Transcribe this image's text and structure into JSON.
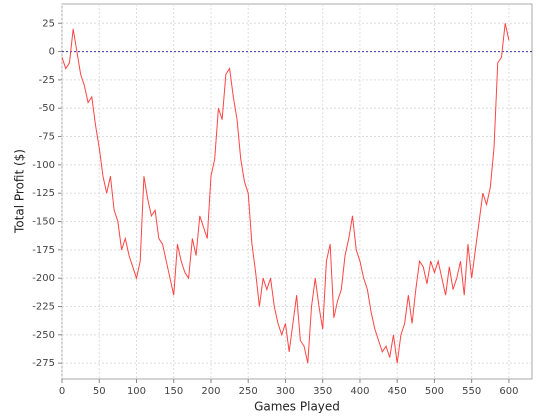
{
  "chart_data": {
    "type": "line",
    "x_label": "Games Played",
    "y_label": "Total Profit ($)",
    "x": [
      0,
      5,
      10,
      15,
      20,
      25,
      30,
      35,
      40,
      45,
      50,
      55,
      60,
      65,
      70,
      75,
      80,
      85,
      90,
      95,
      100,
      105,
      110,
      115,
      120,
      125,
      130,
      135,
      140,
      145,
      150,
      155,
      160,
      165,
      170,
      175,
      180,
      185,
      190,
      195,
      200,
      205,
      210,
      215,
      220,
      225,
      230,
      235,
      240,
      245,
      250,
      255,
      260,
      265,
      270,
      275,
      280,
      285,
      290,
      295,
      300,
      305,
      310,
      315,
      320,
      325,
      330,
      335,
      340,
      345,
      350,
      355,
      360,
      365,
      370,
      375,
      380,
      385,
      390,
      395,
      400,
      405,
      410,
      415,
      420,
      425,
      430,
      435,
      440,
      445,
      450,
      455,
      460,
      465,
      470,
      475,
      480,
      485,
      490,
      495,
      500,
      505,
      510,
      515,
      520,
      525,
      530,
      535,
      540,
      545,
      550,
      555,
      560,
      565,
      570,
      575,
      580,
      585,
      590,
      595,
      600
    ],
    "series": [
      {
        "color": "#ff4444",
        "values": [
          -5,
          -15,
          -10,
          20,
          0,
          -20,
          -30,
          -45,
          -40,
          -65,
          -85,
          -110,
          -125,
          -110,
          -140,
          -150,
          -175,
          -165,
          -180,
          -190,
          -200,
          -185,
          -110,
          -130,
          -145,
          -140,
          -165,
          -170,
          -185,
          -200,
          -215,
          -170,
          -185,
          -195,
          -200,
          -165,
          -180,
          -145,
          -155,
          -165,
          -110,
          -95,
          -50,
          -60,
          -20,
          -15,
          -40,
          -60,
          -95,
          -115,
          -125,
          -170,
          -195,
          -225,
          -200,
          -210,
          -200,
          -225,
          -240,
          -250,
          -240,
          -265,
          -240,
          -215,
          -255,
          -260,
          -275,
          -225,
          -200,
          -225,
          -245,
          -185,
          -170,
          -235,
          -220,
          -210,
          -180,
          -165,
          -145,
          -175,
          -185,
          -200,
          -210,
          -230,
          -245,
          -255,
          -265,
          -260,
          -270,
          -250,
          -275,
          -250,
          -240,
          -215,
          -240,
          -210,
          -185,
          -190,
          -205,
          -185,
          -195,
          -185,
          -200,
          -215,
          -190,
          -210,
          -200,
          -185,
          -215,
          -170,
          -200,
          -175,
          -150,
          -125,
          -135,
          -120,
          -85,
          -10,
          -5,
          25,
          10
        ]
      }
    ],
    "xlim": [
      0,
      631
    ],
    "ylim": [
      -289,
      42
    ],
    "xticks": [
      0,
      50,
      100,
      150,
      200,
      250,
      300,
      350,
      400,
      450,
      500,
      550,
      600
    ],
    "yticks": [
      25,
      0,
      -25,
      -50,
      -75,
      -100,
      -125,
      -150,
      -175,
      -200,
      -225,
      -250,
      -275
    ],
    "grid": true,
    "zero_line": true,
    "zero_line_color": "#3333aa"
  }
}
